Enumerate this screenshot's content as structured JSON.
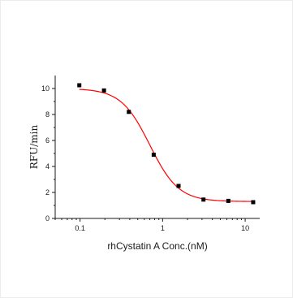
{
  "chart_data": {
    "type": "scatter",
    "title": "",
    "xlabel": "rhCystatin A Conc.(nM)",
    "ylabel": "RFU/min",
    "x_scale": "log",
    "xlim": [
      0.05,
      15
    ],
    "ylim": [
      0,
      11
    ],
    "x_ticks": [
      {
        "value": 0.1,
        "label": "0.1"
      },
      {
        "value": 1,
        "label": "1"
      },
      {
        "value": 10,
        "label": "10"
      }
    ],
    "y_ticks": [
      {
        "value": 0,
        "label": "0"
      },
      {
        "value": 2,
        "label": "2"
      },
      {
        "value": 4,
        "label": "4"
      },
      {
        "value": 6,
        "label": "6"
      },
      {
        "value": 8,
        "label": "8"
      },
      {
        "value": 10,
        "label": "10"
      }
    ],
    "grid": false,
    "legend": "none",
    "series": [
      {
        "marker": "square",
        "color": "#000000",
        "x": [
          0.098,
          0.195,
          0.39,
          0.78,
          1.56,
          3.125,
          6.25,
          12.5
        ],
        "y": [
          10.25,
          9.85,
          8.2,
          4.9,
          2.5,
          1.45,
          1.35,
          1.25
        ]
      }
    ],
    "fit_curve": {
      "type": "four-parameter logistic",
      "color": "#ff0000",
      "top": 10.0,
      "bottom": 1.3,
      "ec50": 0.7,
      "hill": 2.5
    }
  }
}
